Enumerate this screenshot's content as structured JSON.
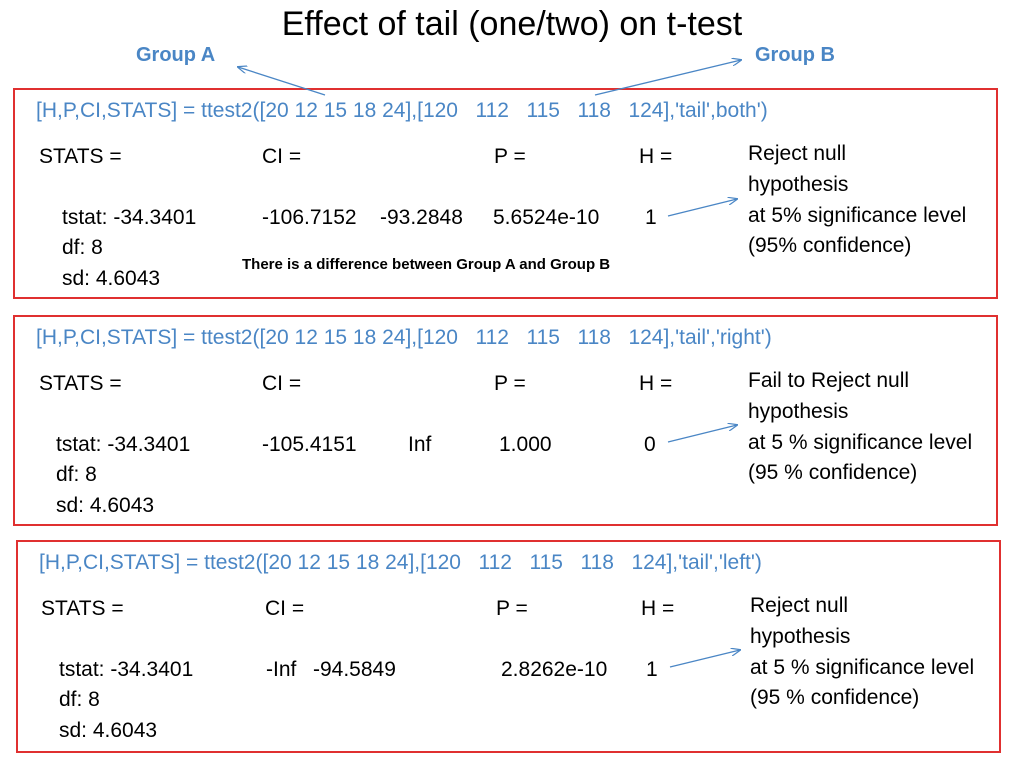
{
  "title": "Effect of tail (one/two) on t-test",
  "group_a": "Group A",
  "group_b": "Group B",
  "colors": {
    "accent": "#4a86c5",
    "border": "#e03030"
  },
  "panels": [
    {
      "command": "[H,P,CI,STATS] = ttest2([20 12 15 18 24],[120   112   115   118   124],'tail',both')",
      "stats_head": "STATS =",
      "ci_head": "CI =",
      "p_head": "P =",
      "h_head": "H =",
      "tstat": "tstat: -34.3401",
      "df": "df: 8",
      "sd": "sd: 4.6043",
      "ci_low": "-106.7152",
      "ci_high": "-93.2848",
      "p": "5.6524e-10",
      "h": "1",
      "result": [
        "Reject null",
        "hypothesis",
        "at 5% significance level",
        "(95% confidence)"
      ],
      "note": "There is a difference between Group A and Group B"
    },
    {
      "command": "[H,P,CI,STATS] = ttest2([20 12 15 18 24],[120   112   115   118   124],'tail','right')",
      "stats_head": "STATS =",
      "ci_head": "CI =",
      "p_head": "P =",
      "h_head": "H =",
      "tstat": "tstat: -34.3401",
      "df": "df: 8",
      "sd": "sd: 4.6043",
      "ci_low": "-105.4151",
      "ci_high": "Inf",
      "p": "1.000",
      "h": "0",
      "result": [
        "Fail to Reject null",
        "hypothesis",
        "at 5 % significance level",
        "(95 % confidence)"
      ]
    },
    {
      "command": "[H,P,CI,STATS] = ttest2([20 12 15 18 24],[120   112   115   118   124],'tail','left')",
      "stats_head": "STATS =",
      "ci_head": "CI =",
      "p_head": "P =",
      "h_head": "H =",
      "tstat": "tstat: -34.3401",
      "df": "df: 8",
      "sd": "sd: 4.6043",
      "ci_low": "-Inf",
      "ci_high": "-94.5849",
      "p": "2.8262e-10",
      "h": "1",
      "result": [
        "Reject null",
        "hypothesis",
        "at 5 % significance level",
        "(95 % confidence)"
      ]
    }
  ]
}
